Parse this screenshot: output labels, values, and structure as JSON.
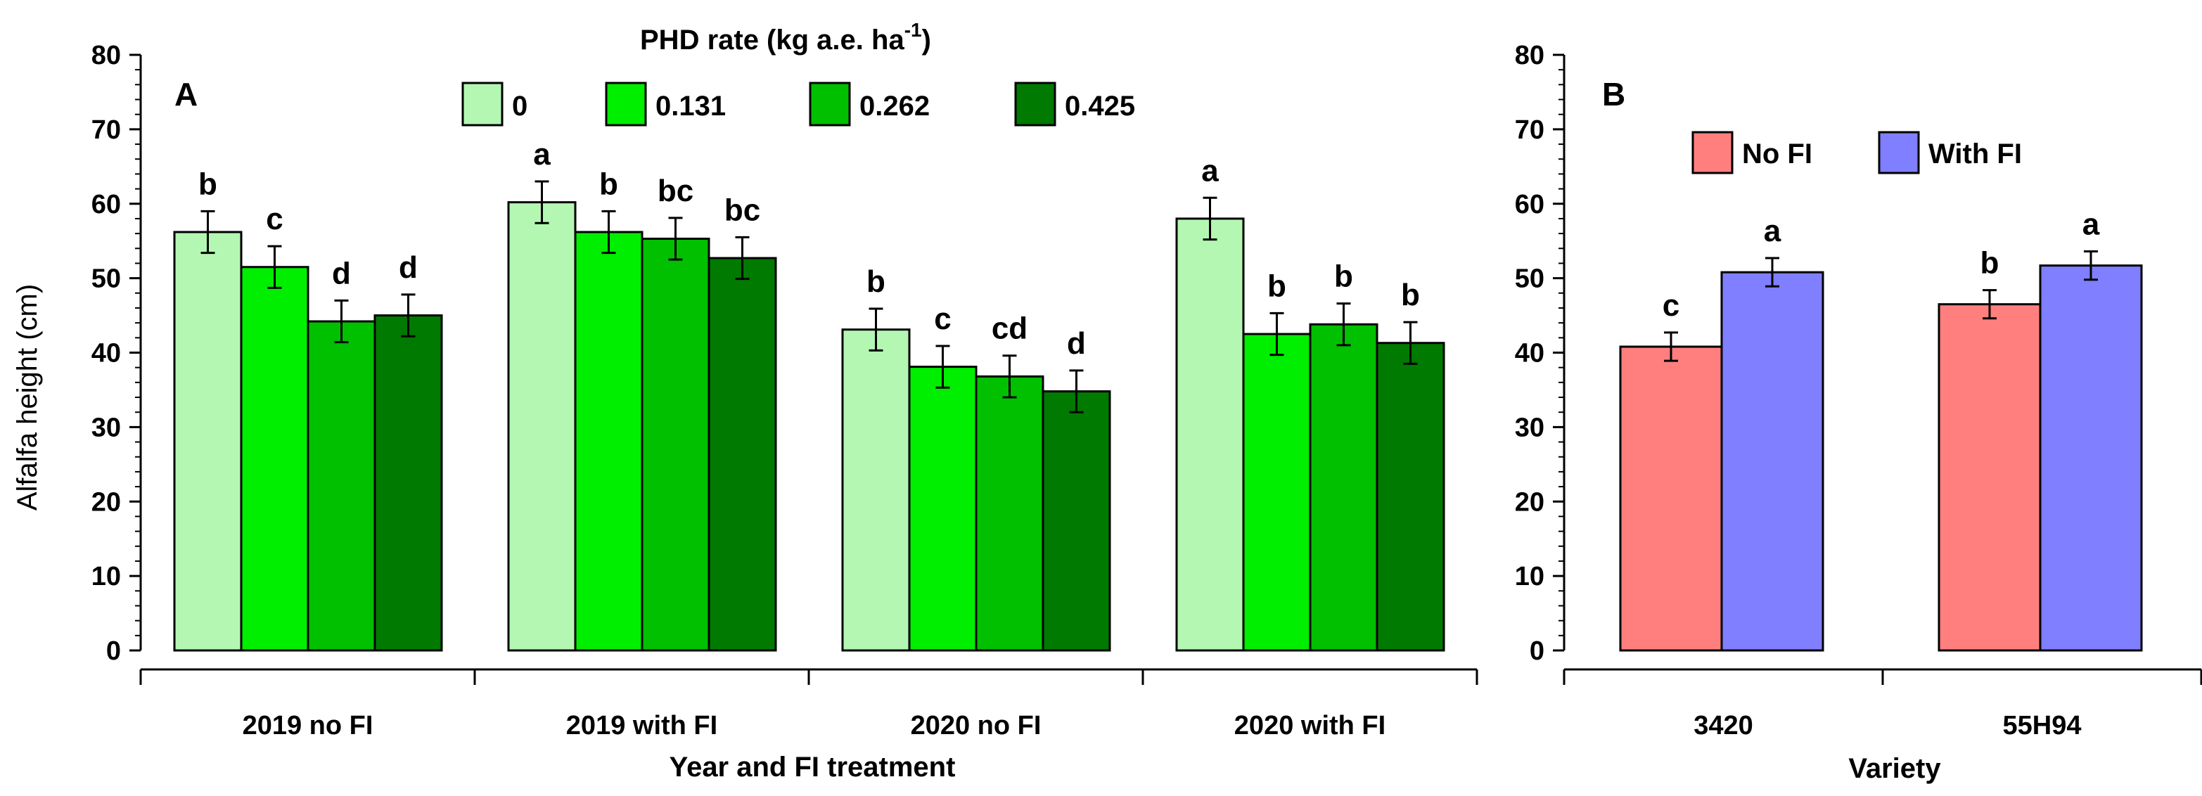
{
  "chart_data": [
    {
      "type": "bar",
      "panel_label": "A",
      "title": "",
      "legend_title": "PHD rate (kg a.e. ha",
      "legend_title_sup": "-1",
      "legend_title_close": ")",
      "xlabel": "Year and FI treatment",
      "ylabel": "Alfalfa height (cm)",
      "ylim": [
        0,
        80
      ],
      "yticks": [
        "0",
        "10",
        "20",
        "30",
        "40",
        "50",
        "60",
        "70",
        "80"
      ],
      "categories": [
        "2019 no FI",
        "2019 with FI",
        "2020 no FI",
        "2020 with FI"
      ],
      "series": [
        {
          "name": "0",
          "color": "#b3f7b3",
          "values": [
            56.2,
            60.2,
            43.1,
            58.0
          ],
          "errors": [
            2.8,
            2.8,
            2.8,
            2.8
          ],
          "letters": [
            "b",
            "a",
            "b",
            "a"
          ]
        },
        {
          "name": "0.131",
          "color": "#00ee00",
          "values": [
            51.5,
            56.2,
            38.1,
            42.5
          ],
          "errors": [
            2.8,
            2.8,
            2.8,
            2.8
          ],
          "letters": [
            "c",
            "b",
            "c",
            "b"
          ]
        },
        {
          "name": "0.262",
          "color": "#00c000",
          "values": [
            44.2,
            55.3,
            36.8,
            43.8
          ],
          "errors": [
            2.8,
            2.8,
            2.8,
            2.8
          ],
          "letters": [
            "d",
            "bc",
            "cd",
            "b"
          ]
        },
        {
          "name": "0.425",
          "color": "#007a00",
          "values": [
            45.0,
            52.7,
            34.8,
            41.3
          ],
          "errors": [
            2.8,
            2.8,
            2.8,
            2.8
          ],
          "letters": [
            "d",
            "bc",
            "d",
            "b"
          ]
        }
      ]
    },
    {
      "type": "bar",
      "panel_label": "B",
      "title": "",
      "xlabel": "Variety",
      "ylabel": "",
      "ylim": [
        0,
        80
      ],
      "yticks": [
        "0",
        "10",
        "20",
        "30",
        "40",
        "50",
        "60",
        "70",
        "80"
      ],
      "categories": [
        "3420",
        "55H94"
      ],
      "series": [
        {
          "name": "No FI",
          "color": "#ff7f7f",
          "values": [
            40.8,
            46.5
          ],
          "errors": [
            1.9,
            1.9
          ],
          "letters": [
            "c",
            "b"
          ]
        },
        {
          "name": "With FI",
          "color": "#7f7fff",
          "values": [
            50.8,
            51.7
          ],
          "errors": [
            1.9,
            1.9
          ],
          "letters": [
            "a",
            "a"
          ]
        }
      ]
    }
  ]
}
